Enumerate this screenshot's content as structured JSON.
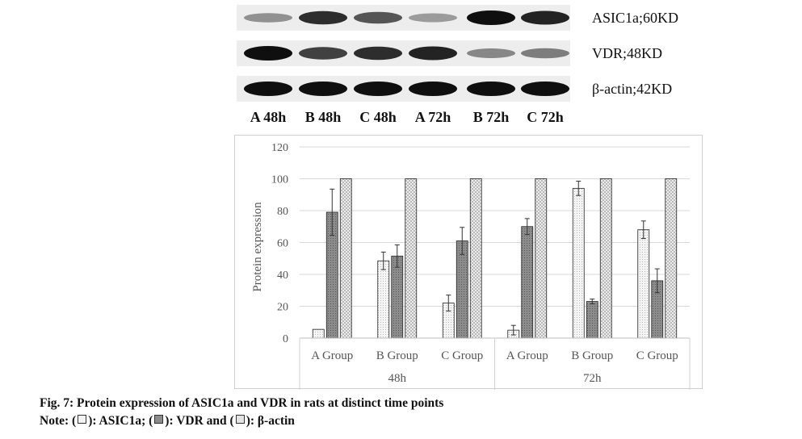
{
  "blot": {
    "lane_labels": [
      "A 48h",
      "B 48h",
      "C 48h",
      "A 72h",
      "B 72h",
      "C 72h"
    ],
    "rows": [
      {
        "label": "ASIC1a;60KD",
        "intensity": [
          0.35,
          0.85,
          0.65,
          0.3,
          1.0,
          0.9
        ]
      },
      {
        "label": "VDR;48KD",
        "intensity": [
          1.0,
          0.75,
          0.85,
          0.9,
          0.4,
          0.45
        ]
      },
      {
        "label": "β-actin;42KD",
        "intensity": [
          1.0,
          1.0,
          1.0,
          1.0,
          1.0,
          1.0
        ]
      }
    ]
  },
  "chart_data": {
    "type": "bar",
    "ylabel": "Protein expression",
    "ylim": [
      0,
      120
    ],
    "yticks": [
      0,
      20,
      40,
      60,
      80,
      100,
      120
    ],
    "grid": true,
    "time_groups": [
      "48h",
      "72h"
    ],
    "categories": [
      "A Group",
      "B Group",
      "C Group",
      "A Group",
      "B Group",
      "C Group"
    ],
    "series": [
      {
        "name": "ASIC1a",
        "values": [
          5.5,
          48.5,
          22,
          5,
          94,
          68
        ],
        "errors": [
          0,
          5.5,
          5,
          3,
          4.5,
          5.5
        ],
        "pattern": "light-dots"
      },
      {
        "name": "VDR",
        "values": [
          79,
          51.5,
          61,
          70,
          23,
          36
        ],
        "errors": [
          14.5,
          7,
          8.5,
          5,
          1.5,
          7.5
        ],
        "pattern": "dark-dots"
      },
      {
        "name": "β-actin",
        "values": [
          100,
          100,
          100,
          100,
          100,
          100
        ],
        "errors": [
          0,
          0,
          0,
          0,
          0,
          0
        ],
        "pattern": "cross-hatch"
      }
    ]
  },
  "caption": {
    "title": "Fig. 7: Protein expression of ASIC1a and VDR in rats at distinct time points",
    "note_prefix": "Note: (",
    "note_asic": "): ASIC1a; (",
    "note_vdr": "): VDR and (",
    "note_actin": "): β-actin"
  }
}
